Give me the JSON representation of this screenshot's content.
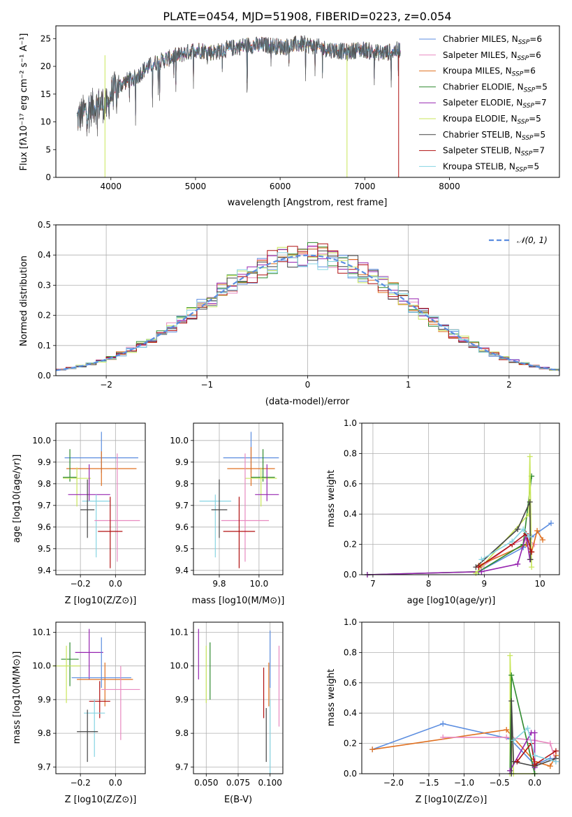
{
  "figure_title": "PLATE=0454, MJD=51908, FIBERID=0223, z=0.054",
  "colors": {
    "Chabrier MILES": "#5b8de0",
    "Salpeter MILES": "#e889c0",
    "Kroupa MILES": "#e07020",
    "Chabrier ELODIE": "#2f8a2f",
    "Salpeter ELODIE": "#9624b0",
    "Kroupa ELODIE": "#c8e65a",
    "Chabrier STELIB": "#444444",
    "Salpeter STELIB": "#b01010",
    "Kroupa STELIB": "#86d4e2"
  },
  "chart_data": [
    {
      "id": "spectrum",
      "type": "line",
      "title": "",
      "xlabel": "wavelength [Angstrom, rest frame]",
      "ylabel": "Flux [fλ10⁻¹⁷ erg cm⁻² s⁻¹ A⁻¹]",
      "xlim": [
        3350,
        9300
      ],
      "ylim": [
        0,
        27.3
      ],
      "xticks": [
        4000,
        5000,
        6000,
        7000,
        8000
      ],
      "yticks": [
        0,
        5,
        10,
        15,
        20,
        25
      ],
      "grid": false,
      "legend_position": "top-right",
      "legend": [
        "Chabrier MILES, N_SSP=6",
        "Salpeter MILES, N_SSP=6",
        "Kroupa MILES, N_SSP=6",
        "Chabrier ELODIE, N_SSP=5",
        "Salpeter ELODIE, N_SSP=7",
        "Kroupa ELODIE, N_SSP=5",
        "Chabrier STELIB, N_SSP=5",
        "Salpeter STELIB, N_SSP=7",
        "Kroupa STELIB, N_SSP=5"
      ],
      "continuum": {
        "x": [
          3600,
          3700,
          3800,
          3900,
          3960,
          4000,
          4100,
          4200,
          4300,
          4400,
          4500,
          4600,
          4700,
          4800,
          4900,
          5000,
          5100,
          5200,
          5300,
          5400,
          5500,
          5600,
          5700,
          5800,
          5900,
          6000,
          6100,
          6200,
          6300,
          6400,
          6500,
          6600,
          6700,
          6800,
          6900,
          7000,
          7100,
          7200,
          7300,
          7400,
          7500,
          7600,
          7700,
          7800,
          7900,
          8000,
          8100,
          8200,
          8300,
          8400,
          8500,
          8600,
          8700,
          8800,
          8900,
          9000,
          9100,
          9200
        ],
        "y": [
          10.5,
          12.0,
          12.8,
          13.3,
          12.5,
          15.0,
          16.5,
          17.5,
          18.0,
          19.5,
          20.5,
          21.0,
          21.5,
          22.0,
          22.5,
          23.0,
          22.8,
          22.5,
          22.8,
          23.2,
          23.5,
          23.8,
          23.8,
          23.8,
          23.8,
          23.5,
          23.6,
          24.0,
          24.0,
          23.6,
          23.3,
          23.0,
          22.8,
          22.5,
          23.0,
          23.0,
          22.6,
          22.4,
          22.6,
          23.0,
          23.3,
          23.5,
          23.5,
          23.6,
          23.4,
          23.4,
          23.8,
          24.0,
          24.0,
          24.0,
          23.8,
          23.7,
          23.8,
          24.0,
          24.1,
          24.1,
          24.1,
          24.1
        ]
      }
    },
    {
      "id": "residuals",
      "type": "step",
      "title": "",
      "xlabel": "(data-model)/error",
      "ylabel": "Normed distribution",
      "xlim": [
        -2.5,
        2.5
      ],
      "ylim": [
        0,
        0.5
      ],
      "xticks": [
        -2,
        -1,
        0,
        1,
        2
      ],
      "yticks": [
        0.0,
        0.1,
        0.2,
        0.3,
        0.4,
        0.5
      ],
      "grid": true,
      "legend_position": "top-right",
      "legend": [
        "𝒩(0, 1)"
      ],
      "bin_width": 0.1,
      "gaussian": {
        "mean": 0,
        "sigma": 1
      }
    },
    {
      "id": "age-vs-z",
      "type": "errorbar",
      "xlabel": "Z [log10(Z/Z⊙)]",
      "ylabel": "age  [log10(age/yr)]",
      "xlim": [
        -0.34,
        0.17
      ],
      "ylim": [
        9.38,
        10.08
      ],
      "xticks": [
        -0.2,
        0.0
      ],
      "yticks": [
        9.4,
        9.5,
        9.6,
        9.7,
        9.8,
        9.9,
        10.0
      ],
      "grid": true,
      "points": [
        {
          "model": "Chabrier MILES",
          "x": -0.08,
          "y": 9.92,
          "xerr": 0.21,
          "yerr": [
            0.07,
            0.12
          ]
        },
        {
          "model": "Kroupa MILES",
          "x": -0.08,
          "y": 9.87,
          "xerr": 0.2,
          "yerr": [
            0.08,
            0.08
          ]
        },
        {
          "model": "Chabrier ELODIE",
          "x": -0.26,
          "y": 9.83,
          "xerr": 0.04,
          "yerr": [
            0.02,
            0.13
          ]
        },
        {
          "model": "Kroupa ELODIE",
          "x": -0.22,
          "y": 9.825,
          "xerr": 0.08,
          "yerr": [
            0.13,
            0.05
          ]
        },
        {
          "model": "Salpeter ELODIE",
          "x": -0.15,
          "y": 9.75,
          "xerr": 0.12,
          "yerr": [
            0.03,
            0.14
          ]
        },
        {
          "model": "Kroupa STELIB",
          "x": -0.11,
          "y": 9.72,
          "xerr": 0.08,
          "yerr": [
            0.26,
            0.03
          ]
        },
        {
          "model": "Chabrier STELIB",
          "x": -0.16,
          "y": 9.68,
          "xerr": 0.04,
          "yerr": [
            0.13,
            0.14
          ]
        },
        {
          "model": "Salpeter MILES",
          "x": 0.01,
          "y": 9.63,
          "xerr": 0.13,
          "yerr": [
            0.19,
            0.31
          ]
        },
        {
          "model": "Salpeter STELIB",
          "x": -0.03,
          "y": 9.58,
          "xerr": 0.07,
          "yerr": [
            0.17,
            0.16
          ]
        }
      ]
    },
    {
      "id": "age-vs-mass",
      "type": "errorbar",
      "xlabel": "mass [log10(M/M⊙)]",
      "ylabel": "",
      "xlim": [
        9.67,
        10.12
      ],
      "ylim": [
        9.38,
        10.08
      ],
      "xticks": [
        9.8,
        10.0
      ],
      "yticks": [
        9.4,
        9.5,
        9.6,
        9.7,
        9.8,
        9.9,
        10.0
      ],
      "grid": true,
      "points": [
        {
          "model": "Chabrier MILES",
          "x": 9.96,
          "y": 9.92,
          "xerr": 0.14,
          "yerr": [
            0.07,
            0.12
          ]
        },
        {
          "model": "Kroupa MILES",
          "x": 9.96,
          "y": 9.87,
          "xerr": 0.12,
          "yerr": [
            0.08,
            0.1
          ]
        },
        {
          "model": "Chabrier ELODIE",
          "x": 10.02,
          "y": 9.83,
          "xerr": 0.06,
          "yerr": [
            0.02,
            0.13
          ]
        },
        {
          "model": "Kroupa ELODIE",
          "x": 10.01,
          "y": 9.825,
          "xerr": 0.08,
          "yerr": [
            0.13,
            0.05
          ]
        },
        {
          "model": "Salpeter ELODIE",
          "x": 10.04,
          "y": 9.75,
          "xerr": 0.06,
          "yerr": [
            0.03,
            0.14
          ]
        },
        {
          "model": "Kroupa STELIB",
          "x": 9.78,
          "y": 9.72,
          "xerr": 0.08,
          "yerr": [
            0.26,
            0.03
          ]
        },
        {
          "model": "Chabrier STELIB",
          "x": 9.8,
          "y": 9.68,
          "xerr": 0.04,
          "yerr": [
            0.13,
            0.14
          ]
        },
        {
          "model": "Salpeter MILES",
          "x": 9.93,
          "y": 9.63,
          "xerr": 0.12,
          "yerr": [
            0.19,
            0.31
          ]
        },
        {
          "model": "Salpeter STELIB",
          "x": 9.9,
          "y": 9.58,
          "xerr": 0.08,
          "yerr": [
            0.17,
            0.16
          ]
        }
      ]
    },
    {
      "id": "weight-vs-age",
      "type": "line",
      "xlabel": "age  [log10(age/yr)]",
      "ylabel": "mass weight",
      "xlim": [
        6.8,
        10.35
      ],
      "ylim": [
        0,
        1
      ],
      "xticks": [
        7,
        8,
        9,
        10
      ],
      "yticks": [
        0.0,
        0.2,
        0.4,
        0.6,
        0.8,
        1.0
      ],
      "grid": true,
      "series": [
        {
          "model": "Chabrier MILES",
          "x": [
            8.9,
            9.7,
            9.85,
            10.2
          ],
          "y": [
            0.02,
            0.18,
            0.25,
            0.34
          ]
        },
        {
          "model": "Salpeter MILES",
          "x": [
            8.95,
            9.5,
            9.75,
            9.9
          ],
          "y": [
            0.05,
            0.2,
            0.24,
            0.2
          ]
        },
        {
          "model": "Kroupa MILES",
          "x": [
            8.9,
            9.75,
            9.85,
            9.95,
            10.05
          ],
          "y": [
            0.06,
            0.2,
            0.15,
            0.29,
            0.23
          ]
        },
        {
          "model": "Chabrier ELODIE",
          "x": [
            6.9,
            8.9,
            9.7,
            9.85
          ],
          "y": [
            0.0,
            0.02,
            0.2,
            0.65
          ]
        },
        {
          "model": "Salpeter ELODIE",
          "x": [
            6.9,
            8.95,
            9.6,
            9.75,
            9.82
          ],
          "y": [
            0.0,
            0.02,
            0.07,
            0.26,
            0.1
          ]
        },
        {
          "model": "Kroupa ELODIE",
          "x": [
            8.85,
            9.8,
            9.82,
            9.85
          ],
          "y": [
            0.01,
            0.4,
            0.78,
            0.05
          ]
        },
        {
          "model": "Chabrier STELIB",
          "x": [
            8.85,
            9.6,
            9.82,
            9.83
          ],
          "y": [
            0.05,
            0.3,
            0.48,
            0.1
          ]
        },
        {
          "model": "Salpeter STELIB",
          "x": [
            8.9,
            9.5,
            9.75,
            9.85
          ],
          "y": [
            0.05,
            0.2,
            0.27,
            0.15
          ]
        },
        {
          "model": "Kroupa STELIB",
          "x": [
            8.95,
            9.5,
            9.7,
            9.8
          ],
          "y": [
            0.1,
            0.22,
            0.3,
            0.25
          ]
        }
      ]
    },
    {
      "id": "mass-vs-z",
      "type": "errorbar",
      "xlabel": "Z [log10(Z/Z⊙)]",
      "ylabel": "mass [log10(M/M⊙)]",
      "xlim": [
        -0.34,
        0.17
      ],
      "ylim": [
        9.68,
        10.13
      ],
      "xticks": [
        -0.2,
        0.0
      ],
      "yticks": [
        9.7,
        9.8,
        9.9,
        10.0,
        10.1
      ],
      "grid": true,
      "points": [
        {
          "model": "Chabrier ELODIE",
          "x": -0.26,
          "y": 10.02,
          "xerr": 0.05,
          "yerr": [
            0.08,
            0.05
          ]
        },
        {
          "model": "Salpeter ELODIE",
          "x": -0.15,
          "y": 10.04,
          "xerr": 0.08,
          "yerr": [
            0.08,
            0.07
          ]
        },
        {
          "model": "Kroupa ELODIE",
          "x": -0.28,
          "y": 10.0,
          "xerr": 0.08,
          "yerr": [
            0.11,
            0.06
          ]
        },
        {
          "model": "Kroupa MILES",
          "x": -0.06,
          "y": 9.96,
          "xerr": 0.16,
          "yerr": [
            0.08,
            0.05
          ]
        },
        {
          "model": "Chabrier MILES",
          "x": -0.08,
          "y": 9.965,
          "xerr": 0.17,
          "yerr": [
            0.03,
            0.12
          ]
        },
        {
          "model": "Salpeter MILES",
          "x": 0.03,
          "y": 9.93,
          "xerr": 0.11,
          "yerr": [
            0.15,
            0.07
          ]
        },
        {
          "model": "Salpeter STELIB",
          "x": -0.09,
          "y": 9.895,
          "xerr": 0.06,
          "yerr": [
            0.05,
            0.06
          ]
        },
        {
          "model": "Kroupa STELIB",
          "x": -0.12,
          "y": 9.86,
          "xerr": 0.06,
          "yerr": [
            0.13,
            0.04
          ]
        },
        {
          "model": "Chabrier STELIB",
          "x": -0.16,
          "y": 9.805,
          "xerr": 0.06,
          "yerr": [
            0.09,
            0.065
          ]
        }
      ]
    },
    {
      "id": "mass-vs-ebv",
      "type": "errorbar",
      "xlabel": "E(B-V)",
      "ylabel": "",
      "xlim": [
        0.04,
        0.11
      ],
      "ylim": [
        9.68,
        10.13
      ],
      "xticks": [
        0.05,
        0.075,
        0.1
      ],
      "xtick_labels": [
        "0.050",
        "0.075",
        "0.100"
      ],
      "yticks": [
        9.7,
        9.8,
        9.9,
        10.0,
        10.1
      ],
      "grid": true,
      "points": [
        {
          "model": "Salpeter ELODIE",
          "x": 0.044,
          "y": 10.04,
          "yerr": [
            0.08,
            0.07
          ]
        },
        {
          "model": "Kroupa ELODIE",
          "x": 0.05,
          "y": 10.0,
          "yerr": [
            0.11,
            0.06
          ]
        },
        {
          "model": "Chabrier ELODIE",
          "x": 0.053,
          "y": 10.02,
          "yerr": [
            0.12,
            0.05
          ]
        },
        {
          "model": "Salpeter STELIB",
          "x": 0.095,
          "y": 9.895,
          "yerr": [
            0.05,
            0.1
          ]
        },
        {
          "model": "Chabrier STELIB",
          "x": 0.097,
          "y": 9.805,
          "yerr": [
            0.09,
            0.07
          ]
        },
        {
          "model": "Kroupa MILES",
          "x": 0.099,
          "y": 9.96,
          "yerr": [
            0.08,
            0.05
          ]
        },
        {
          "model": "Chabrier MILES",
          "x": 0.1,
          "y": 9.965,
          "yerr": [
            0.03,
            0.14
          ]
        },
        {
          "model": "Kroupa STELIB",
          "x": 0.1,
          "y": 9.86,
          "yerr": [
            0.18,
            0.04
          ]
        },
        {
          "model": "Salpeter MILES",
          "x": 0.107,
          "y": 9.93,
          "yerr": [
            0.11,
            0.13
          ]
        }
      ]
    },
    {
      "id": "weight-vs-z",
      "type": "line",
      "xlabel": "Z [log10(Z/Z⊙)]",
      "ylabel": "mass weight",
      "xlim": [
        -2.45,
        0.35
      ],
      "ylim": [
        0,
        1
      ],
      "xticks": [
        -2.0,
        -1.5,
        -1.0,
        -0.5,
        0.0
      ],
      "xtick_labels": [
        "−2.0",
        "−1.5",
        "−1.0",
        "−0.5",
        "0.0"
      ],
      "yticks": [
        0.0,
        0.2,
        0.4,
        0.6,
        0.8,
        1.0
      ],
      "grid": true,
      "series": [
        {
          "model": "Chabrier MILES",
          "x": [
            -2.3,
            -1.3,
            -0.35,
            0.0,
            0.22
          ],
          "y": [
            0.16,
            0.33,
            0.23,
            0.06,
            0.1
          ]
        },
        {
          "model": "Kroupa MILES",
          "x": [
            -2.3,
            -0.4,
            0.0,
            0.22,
            0.3
          ],
          "y": [
            0.16,
            0.29,
            0.08,
            0.05,
            0.12
          ]
        },
        {
          "model": "Salpeter MILES",
          "x": [
            -1.3,
            -0.4,
            0.0,
            0.22,
            0.3
          ],
          "y": [
            0.24,
            0.24,
            0.22,
            0.2,
            0.08
          ]
        },
        {
          "model": "Kroupa ELODIE",
          "x": [
            -0.35,
            -0.35,
            -0.3,
            0.0
          ],
          "y": [
            0.0,
            0.78,
            0.0,
            0.0
          ]
        },
        {
          "model": "Chabrier ELODIE",
          "x": [
            -0.35,
            -0.33,
            0.0
          ],
          "y": [
            0.02,
            0.65,
            0.0
          ]
        },
        {
          "model": "Salpeter ELODIE",
          "x": [
            -0.35,
            -0.05,
            0.0,
            0.0
          ],
          "y": [
            0.02,
            0.27,
            0.27,
            0.04
          ]
        },
        {
          "model": "Chabrier STELIB",
          "x": [
            -0.33,
            -0.33,
            -0.3,
            0.0,
            0.3
          ],
          "y": [
            0.0,
            0.48,
            0.08,
            0.05,
            0.1
          ]
        },
        {
          "model": "Salpeter STELIB",
          "x": [
            -0.25,
            -0.05,
            0.0,
            0.3
          ],
          "y": [
            0.08,
            0.2,
            0.06,
            0.15
          ]
        },
        {
          "model": "Kroupa STELIB",
          "x": [
            -0.3,
            -0.1,
            0.0,
            0.3
          ],
          "y": [
            0.22,
            0.3,
            0.12,
            0.08
          ]
        }
      ]
    }
  ]
}
